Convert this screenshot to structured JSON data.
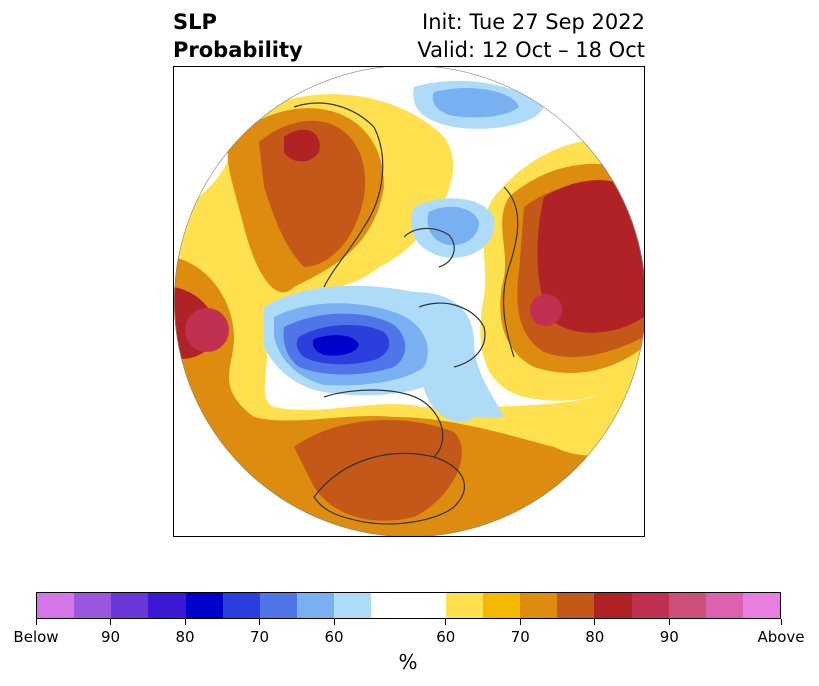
{
  "header": {
    "title_line1": "SLP",
    "title_line2": "Probability",
    "init": "Init: Tue 27 Sep 2022",
    "valid": "Valid: 12 Oct – 18 Oct"
  },
  "colorbar": {
    "colors": [
      "#d475e8",
      "#9c56e0",
      "#6a38d8",
      "#3a18d4",
      "#0000cc",
      "#2a3fdc",
      "#4f75e8",
      "#78b0f2",
      "#aedcf8",
      "#ffffff",
      "#ffffff",
      "#ffe150",
      "#f4b800",
      "#de8c10",
      "#c45818",
      "#b02226",
      "#c03050",
      "#cc4f7c",
      "#dc62b0",
      "#e87ee0"
    ],
    "tick_labels": [
      "Below",
      "90",
      "80",
      "70",
      "60",
      "60",
      "70",
      "80",
      "90",
      "Above"
    ],
    "units": "%"
  },
  "map": {
    "projection": "north polar stereographic",
    "variable": "sea level pressure tercile probability"
  }
}
